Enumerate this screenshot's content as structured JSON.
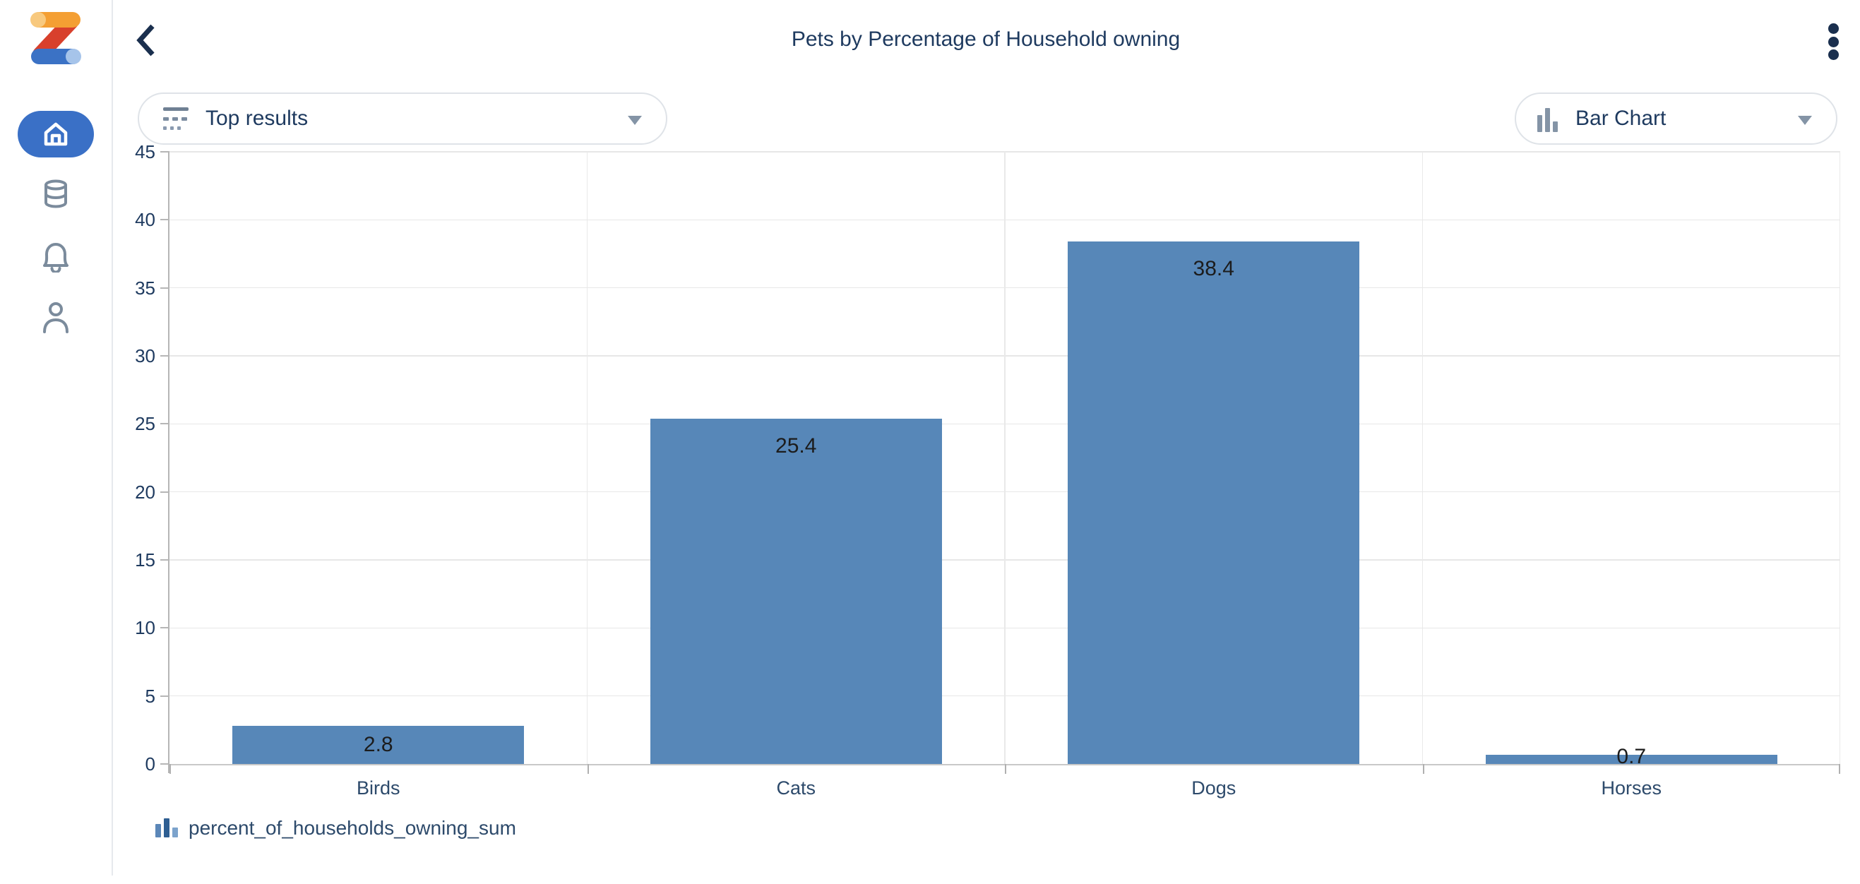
{
  "header": {
    "title": "Pets by Percentage of Household owning"
  },
  "toolbar": {
    "results_dropdown": {
      "value": "Top results"
    },
    "chart_type_dropdown": {
      "value": "Bar Chart"
    }
  },
  "sidebar": {
    "items": [
      {
        "name": "home",
        "active": true
      },
      {
        "name": "data-sources",
        "active": false
      },
      {
        "name": "notifications",
        "active": false
      },
      {
        "name": "profile",
        "active": false
      }
    ]
  },
  "chart_data": {
    "type": "bar",
    "categories": [
      "Birds",
      "Cats",
      "Dogs",
      "Horses"
    ],
    "values": [
      2.8,
      25.4,
      38.4,
      0.7
    ],
    "series": [
      {
        "name": "percent_of_households_owning_sum",
        "values": [
          2.8,
          25.4,
          38.4,
          0.7
        ]
      }
    ],
    "title": "Pets by Percentage of Household owning",
    "xlabel": "",
    "ylabel": "",
    "ylim": [
      0,
      45
    ],
    "ytick_step": 5,
    "grid": true,
    "value_labels": true,
    "bar_color": "#5787b8",
    "legend_position": "bottom-left",
    "legend_label": "percent_of_households_owning_sum"
  },
  "colors": {
    "accent_blue": "#3a70c6",
    "navy_text": "#1e3a5f",
    "bar_fill": "#5787b8",
    "icon_gray": "#7b8b9c"
  }
}
